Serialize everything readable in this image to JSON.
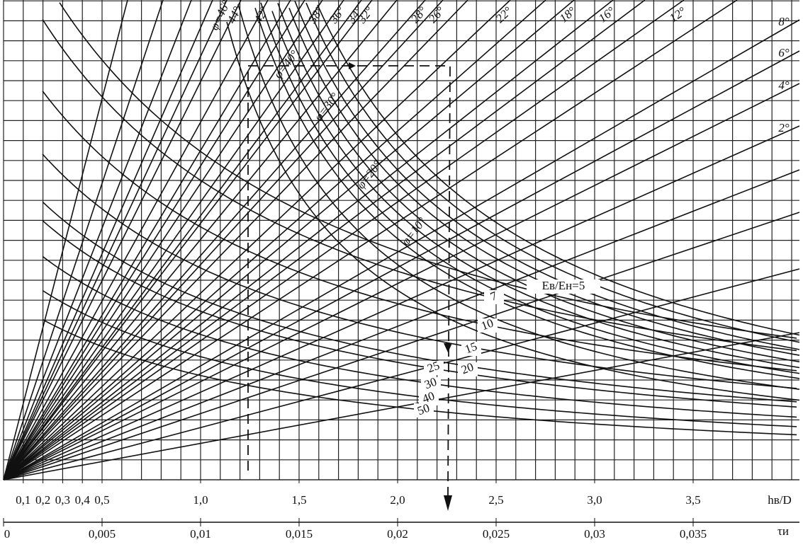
{
  "x_axis": {
    "label": "hв/D",
    "ticks": [
      {
        "value": 0.1,
        "label": "0,1"
      },
      {
        "value": 0.2,
        "label": "0,2"
      },
      {
        "value": 0.3,
        "label": "0,3"
      },
      {
        "value": 0.4,
        "label": "0,4"
      },
      {
        "value": 0.5,
        "label": "0,5"
      },
      {
        "value": 1.0,
        "label": "1,0"
      },
      {
        "value": 1.5,
        "label": "1,5"
      },
      {
        "value": 2.0,
        "label": "2,0"
      },
      {
        "value": 2.5,
        "label": "2,5"
      },
      {
        "value": 3.0,
        "label": "3,0"
      },
      {
        "value": 3.5,
        "label": "3,5"
      }
    ]
  },
  "tau_axis": {
    "label": "τи",
    "ticks": [
      0,
      {
        "value": 0.005,
        "label": "0,005"
      },
      {
        "value": 0.01,
        "label": "0,01"
      },
      {
        "value": 0.015,
        "label": "0,015"
      },
      {
        "value": 0.02,
        "label": "0,02"
      },
      {
        "value": 0.025,
        "label": "0,025"
      },
      {
        "value": 0.03,
        "label": "0,03"
      },
      {
        "value": 0.035,
        "label": "0,035"
      }
    ]
  },
  "fan_labels": [
    "φ=46°",
    "44°",
    "42°",
    "38°",
    "36°",
    "34°",
    "32°",
    "28°",
    "26°",
    "22°",
    "18°",
    "16°",
    "12°",
    "8°",
    "6°",
    "4°",
    "2°"
  ],
  "descending_labels": [
    "φ=40°",
    "φ=30°",
    "φ=20°",
    "φ=10°"
  ],
  "modulus_labels": [
    "Eв/Eн=5",
    "7",
    "10",
    "15",
    "20",
    "25",
    "30",
    "40",
    "50"
  ]
}
